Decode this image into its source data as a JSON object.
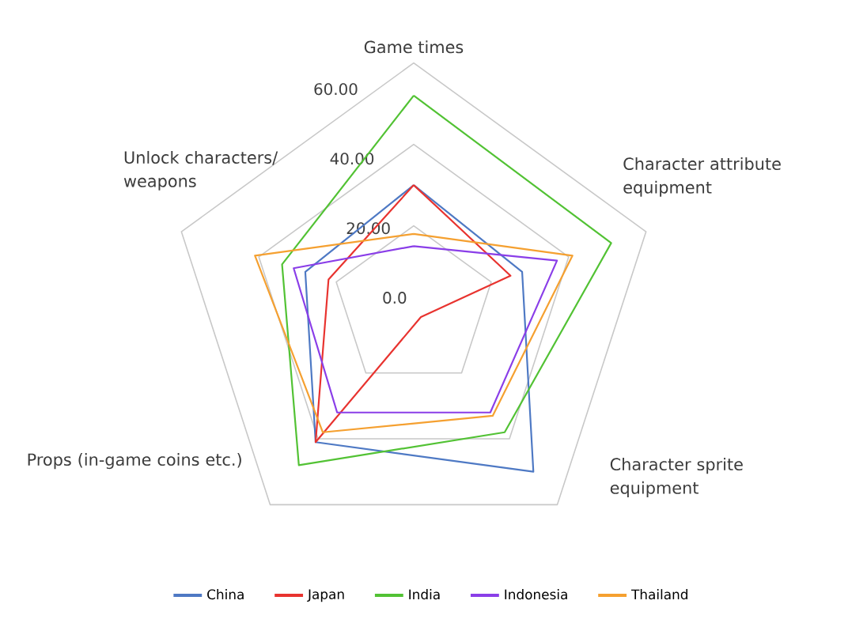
{
  "chart_data": {
    "type": "radar",
    "categories": [
      "Game times",
      "Character attribute equipment",
      "Character sprite equipment",
      "Props (in-game coins etc.)",
      "Unlock characters/ weapons"
    ],
    "series": [
      {
        "name": "China",
        "color": "#4e79c4",
        "values": [
          30,
          28,
          50,
          41,
          28
        ]
      },
      {
        "name": "Japan",
        "color": "#e8332f",
        "values": [
          30,
          25,
          3,
          41,
          22
        ]
      },
      {
        "name": "India",
        "color": "#52c234",
        "values": [
          52,
          51,
          38,
          48,
          34
        ]
      },
      {
        "name": "Indonesia",
        "color": "#8a3ee8",
        "values": [
          15,
          37,
          32,
          32,
          31
        ]
      },
      {
        "name": "Thailand",
        "color": "#f5a030",
        "values": [
          18,
          41,
          33,
          38,
          41
        ]
      }
    ],
    "ylim": [
      0,
      60
    ],
    "yticks": [
      {
        "value": 0,
        "label": "0.0"
      },
      {
        "value": 20,
        "label": "20.00"
      },
      {
        "value": 40,
        "label": "40.00"
      },
      {
        "value": 60,
        "label": "60.00"
      }
    ],
    "grid": true,
    "legend": "bottom"
  }
}
